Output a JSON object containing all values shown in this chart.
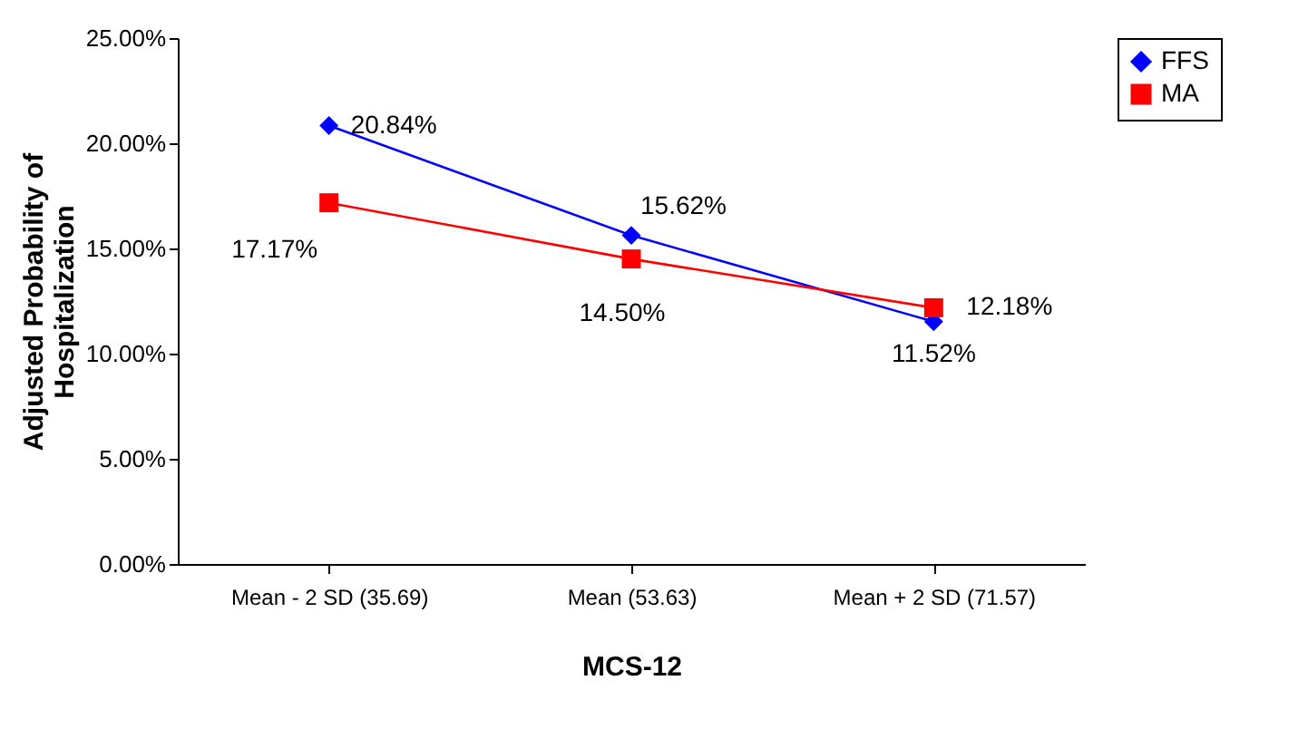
{
  "chart_data": {
    "type": "line",
    "categories": [
      "Mean - 2 SD (35.69)",
      "Mean (53.63)",
      "Mean + 2 SD (71.57)"
    ],
    "series": [
      {
        "name": "FFS",
        "color": "#0000ff",
        "marker": "diamond",
        "values": [
          20.84,
          15.62,
          11.52
        ],
        "value_labels": [
          "20.84%",
          "15.62%",
          "11.52%"
        ]
      },
      {
        "name": "MA",
        "color": "#ff0000",
        "marker": "square",
        "values": [
          17.17,
          14.5,
          12.18
        ],
        "value_labels": [
          "17.17%",
          "14.50%",
          "12.18%"
        ]
      }
    ],
    "xlabel": "MCS-12",
    "ylabel": "Adjusted Probability of Hospitalization",
    "ylim": [
      0,
      25
    ],
    "yticks": [
      {
        "value": 0,
        "label": "0.00%"
      },
      {
        "value": 5,
        "label": "5.00%"
      },
      {
        "value": 10,
        "label": "10.00%"
      },
      {
        "value": 15,
        "label": "15.00%"
      },
      {
        "value": 20,
        "label": "20.00%"
      },
      {
        "value": 25,
        "label": "25.00%"
      }
    ],
    "grid": false,
    "legend": "right",
    "line_style": "solid"
  }
}
